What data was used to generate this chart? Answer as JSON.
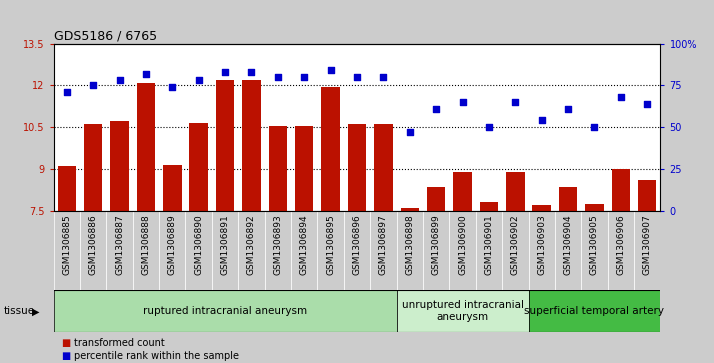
{
  "title": "GDS5186 / 6765",
  "samples": [
    "GSM1306885",
    "GSM1306886",
    "GSM1306887",
    "GSM1306888",
    "GSM1306889",
    "GSM1306890",
    "GSM1306891",
    "GSM1306892",
    "GSM1306893",
    "GSM1306894",
    "GSM1306895",
    "GSM1306896",
    "GSM1306897",
    "GSM1306898",
    "GSM1306899",
    "GSM1306900",
    "GSM1306901",
    "GSM1306902",
    "GSM1306903",
    "GSM1306904",
    "GSM1306905",
    "GSM1306906",
    "GSM1306907"
  ],
  "bar_values": [
    9.1,
    10.6,
    10.7,
    12.1,
    9.15,
    10.65,
    12.2,
    12.2,
    10.55,
    10.55,
    11.95,
    10.6,
    10.6,
    7.6,
    8.35,
    8.9,
    7.8,
    8.9,
    7.7,
    8.35,
    7.75,
    9.0,
    8.6
  ],
  "scatter_values": [
    71,
    75,
    78,
    82,
    74,
    78,
    83,
    83,
    80,
    80,
    84,
    80,
    80,
    47,
    61,
    65,
    50,
    65,
    54,
    61,
    50,
    68,
    64
  ],
  "ylim_left": [
    7.5,
    13.5
  ],
  "ylim_right": [
    0,
    100
  ],
  "yticks_left": [
    7.5,
    9.0,
    10.5,
    12.0,
    13.5
  ],
  "yticks_right": [
    0,
    25,
    50,
    75,
    100
  ],
  "ytick_labels_left": [
    "7.5",
    "9",
    "10.5",
    "12",
    "13.5"
  ],
  "ytick_labels_right": [
    "0",
    "25",
    "50",
    "75",
    "100%"
  ],
  "hlines": [
    9.0,
    10.5,
    12.0
  ],
  "bar_color": "#bb1100",
  "scatter_color": "#0000cc",
  "bg_color": "#cccccc",
  "plot_bg_color": "#ffffff",
  "cell_bg_color": "#cccccc",
  "groups": [
    {
      "label": "ruptured intracranial aneurysm",
      "start": 0,
      "end": 13,
      "color": "#aaddaa"
    },
    {
      "label": "unruptured intracranial\naneurysm",
      "start": 13,
      "end": 18,
      "color": "#cceecc"
    },
    {
      "label": "superficial temporal artery",
      "start": 18,
      "end": 23,
      "color": "#44bb44"
    }
  ],
  "tissue_label": "tissue",
  "xlabel_fontsize": 6.5,
  "title_fontsize": 9,
  "tick_fontsize": 7,
  "group_fontsize": 7.5,
  "legend_fontsize": 7
}
